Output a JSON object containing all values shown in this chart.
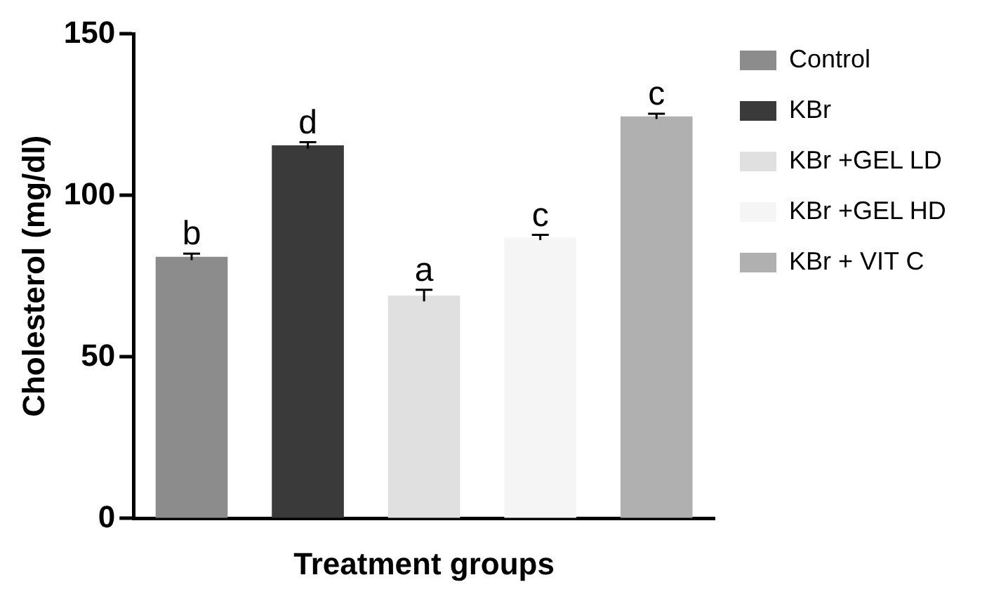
{
  "chart_data": {
    "type": "bar",
    "xlabel": "Treatment groups",
    "ylabel": "Cholesterol (mg/dl)",
    "categories": [
      null
    ],
    "series": [
      {
        "name": "Control",
        "color": "#8c8c8c",
        "values": [
          81
        ],
        "errors": [
          1
        ],
        "value_labels": [
          "b"
        ]
      },
      {
        "name": "KBr",
        "color": "#3a3a3a",
        "values": [
          115.5
        ],
        "errors": [
          1
        ],
        "value_labels": [
          "d"
        ]
      },
      {
        "name": "KBr +GEL LD",
        "color": "#e0e0e0",
        "values": [
          69
        ],
        "errors": [
          1.8
        ],
        "value_labels": [
          "a"
        ]
      },
      {
        "name": "KBr +GEL HD",
        "color": "#f5f5f5",
        "values": [
          87
        ],
        "errors": [
          0.8
        ],
        "value_labels": [
          "c"
        ]
      },
      {
        "name": "KBr + VIT C",
        "color": "#b0b0b0",
        "values": [
          124.5
        ],
        "errors": [
          0.8
        ],
        "value_labels": [
          "c"
        ]
      }
    ],
    "ylim": [
      0,
      150
    ],
    "yticks": [
      0,
      50,
      100,
      150
    ],
    "grid": false,
    "legend": "right"
  }
}
